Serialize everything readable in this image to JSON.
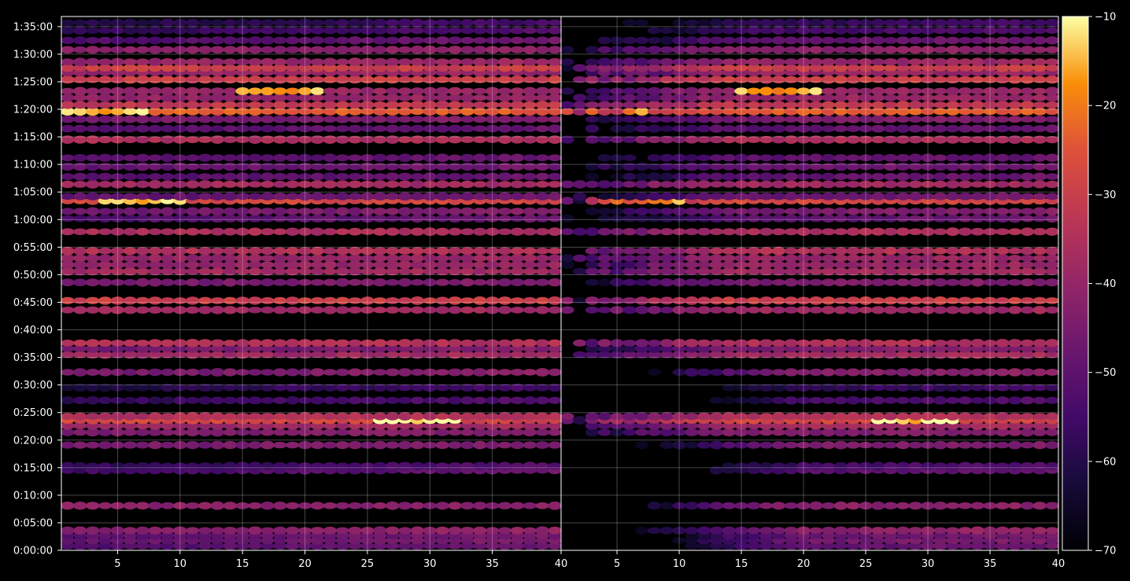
{
  "chart_data": {
    "type": "heatmap",
    "title": "",
    "panels": [
      {
        "name": "",
        "xlim": [
          1,
          40
        ],
        "xticks": [
          "5",
          "10",
          "15",
          "20",
          "25",
          "30",
          "35",
          "40"
        ]
      },
      {
        "name": "",
        "xlim": [
          1,
          40
        ],
        "xticks": [
          "5",
          "10",
          "15",
          "20",
          "25",
          "30",
          "35",
          "40"
        ]
      }
    ],
    "y_time_ticks": [
      "0:00:00",
      "0:05:00",
      "0:10:00",
      "0:15:00",
      "0:20:00",
      "0:25:00",
      "0:30:00",
      "0:35:00",
      "0:40:00",
      "0:45:00",
      "0:50:00",
      "0:55:00",
      "1:00:00",
      "1:05:00",
      "1:10:00",
      "1:15:00",
      "1:20:00",
      "1:25:00",
      "1:30:00",
      "1:35:00"
    ],
    "ylim_seconds": [
      0,
      5810
    ],
    "colorbar": {
      "colormap": "inferno",
      "range": [
        -70,
        -10
      ],
      "ticks": [
        "−10",
        "−20",
        "−30",
        "−40",
        "−50",
        "−60",
        "−70"
      ]
    },
    "background": "#000000",
    "grid": true,
    "bands": [
      {
        "t_min": 0.8,
        "level": -50,
        "trend": 0.3
      },
      {
        "t_min": 1.8,
        "level": -47,
        "trend": 0.25
      },
      {
        "t_min": 2.7,
        "level": -48,
        "trend": 0.25
      },
      {
        "t_min": 3.6,
        "level": -42,
        "trend": 0.15
      },
      {
        "t_min": 8.1,
        "level": -42,
        "trend": 0
      },
      {
        "t_min": 14.5,
        "level": -52,
        "trend": 0.4
      },
      {
        "t_min": 15.3,
        "level": -55,
        "trend": 0.35
      },
      {
        "t_min": 19.1,
        "level": -45,
        "trend": 0.05
      },
      {
        "t_min": 21.4,
        "level": -44,
        "trend": 0.15
      },
      {
        "t_min": 22.6,
        "level": -38,
        "trend": 0.1
      },
      {
        "t_min": 23.6,
        "level": -28,
        "trend": -0.05,
        "peak_x": 29,
        "peak": -14
      },
      {
        "t_min": 24.3,
        "level": -35,
        "trend": 0.05
      },
      {
        "t_min": 27.2,
        "level": -55,
        "trend": 0.3
      },
      {
        "t_min": 29.5,
        "level": -58,
        "trend": 0.3
      },
      {
        "t_min": 32.3,
        "level": -44,
        "trend": 0.25
      },
      {
        "t_min": 35.5,
        "level": -38,
        "trend": 0.1
      },
      {
        "t_min": 36.6,
        "level": -45,
        "trend": 0.2
      },
      {
        "t_min": 37.6,
        "level": -35,
        "trend": 0
      },
      {
        "t_min": 43.6,
        "level": -38,
        "trend": 0
      },
      {
        "t_min": 45.3,
        "level": -30,
        "trend": 0
      },
      {
        "t_min": 48.6,
        "level": -45,
        "trend": 0.15
      },
      {
        "t_min": 50.6,
        "level": -38,
        "trend": 0.05
      },
      {
        "t_min": 51.8,
        "level": -40,
        "trend": 0.05
      },
      {
        "t_min": 53.0,
        "level": -40,
        "trend": 0.05
      },
      {
        "t_min": 54.3,
        "level": -35,
        "trend": 0
      },
      {
        "t_min": 57.8,
        "level": -36,
        "trend": 0
      },
      {
        "t_min": 60.2,
        "level": -50,
        "trend": 0.3
      },
      {
        "t_min": 61.5,
        "level": -45,
        "trend": 0.25
      },
      {
        "t_min": 63.4,
        "level": -28,
        "trend": -0.05,
        "peak_x": 7,
        "peak": -18
      },
      {
        "t_min": 64.2,
        "level": -48,
        "trend": 0.2
      },
      {
        "t_min": 66.4,
        "level": -38,
        "trend": 0
      },
      {
        "t_min": 67.8,
        "level": -50,
        "trend": 0.2
      },
      {
        "t_min": 69.6,
        "level": -48,
        "trend": 0.15
      },
      {
        "t_min": 71.2,
        "level": -50,
        "trend": 0.2
      },
      {
        "t_min": 74.5,
        "level": -36,
        "trend": 0
      },
      {
        "t_min": 76.5,
        "level": -50,
        "trend": 0.15
      },
      {
        "t_min": 78.2,
        "level": -45,
        "trend": 0.1
      },
      {
        "t_min": 79.6,
        "level": -24,
        "trend": 0,
        "peak_x": 4,
        "peak": -18
      },
      {
        "t_min": 80.8,
        "level": -32,
        "trend": 0
      },
      {
        "t_min": 82.1,
        "level": -40,
        "trend": 0.1
      },
      {
        "t_min": 83.3,
        "level": -40,
        "trend": 0.05,
        "peak_x": 18,
        "peak": -20
      },
      {
        "t_min": 85.4,
        "level": -30,
        "trend": 0
      },
      {
        "t_min": 86.7,
        "level": -40,
        "trend": 0.05
      },
      {
        "t_min": 87.5,
        "level": -30,
        "trend": 0
      },
      {
        "t_min": 88.6,
        "level": -40,
        "trend": 0.1
      },
      {
        "t_min": 90.8,
        "level": -42,
        "trend": 0.1
      },
      {
        "t_min": 92.5,
        "level": -50,
        "trend": 0.3
      },
      {
        "t_min": 94.3,
        "level": -55,
        "trend": 0.35
      },
      {
        "t_min": 95.7,
        "level": -58,
        "trend": 0.35
      }
    ]
  }
}
